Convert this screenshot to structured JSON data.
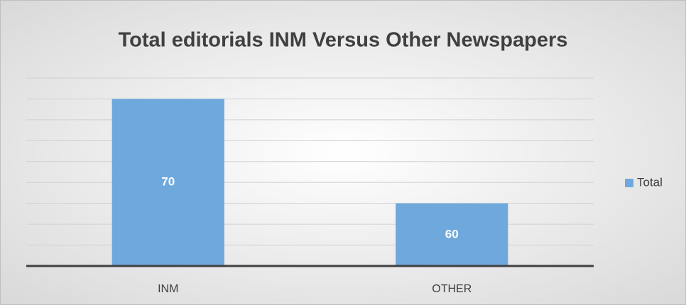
{
  "chart_data": {
    "type": "bar",
    "title": "Total editorials INM Versus Other Newspapers",
    "categories": [
      "INM",
      "OTHER"
    ],
    "series": [
      {
        "name": "Total",
        "color": "#6fa8dc",
        "values": [
          70,
          60
        ]
      }
    ],
    "ylim": [
      54,
      72
    ],
    "yticks": [
      54,
      56,
      58,
      60,
      62,
      64,
      66,
      68,
      70,
      72
    ],
    "grid": true,
    "legend": "right"
  }
}
